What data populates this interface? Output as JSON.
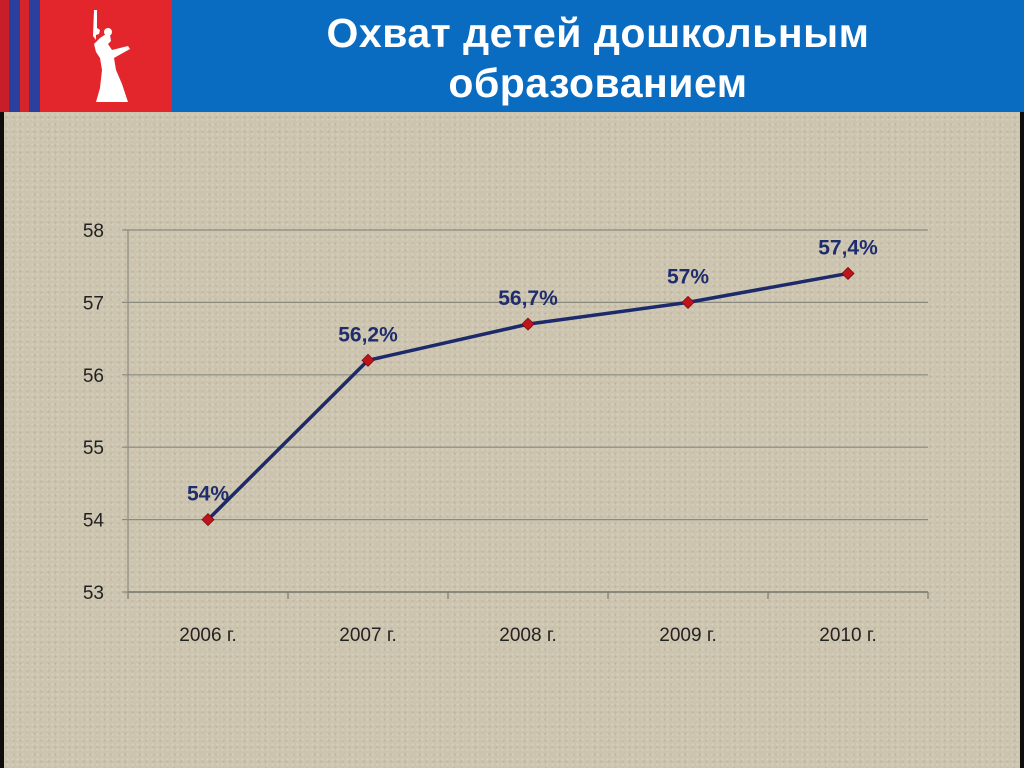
{
  "header": {
    "title_line1": "Охват детей дошкольным",
    "title_line2": "образованием",
    "background_color": "#0a6cc0",
    "logo_panel_color": "#e3262c",
    "logo_icon": "motherland-calls-statue-icon"
  },
  "chart_data": {
    "type": "line",
    "title": "",
    "xlabel": "",
    "ylabel": "",
    "categories": [
      "2006 г.",
      "2007 г.",
      "2008 г.",
      "2009 г.",
      "2010 г."
    ],
    "series": [
      {
        "values": [
          54,
          56.2,
          56.7,
          57,
          57.4
        ],
        "data_labels": [
          "54%",
          "56,2%",
          "56,7%",
          "57%",
          "57,4%"
        ],
        "line_color": "#1c2a6b",
        "marker_color": "#c0141c",
        "marker": "diamond"
      }
    ],
    "ylim": [
      53,
      58
    ],
    "yticks": [
      53,
      54,
      55,
      56,
      57,
      58
    ],
    "grid": true,
    "legend": "none"
  }
}
